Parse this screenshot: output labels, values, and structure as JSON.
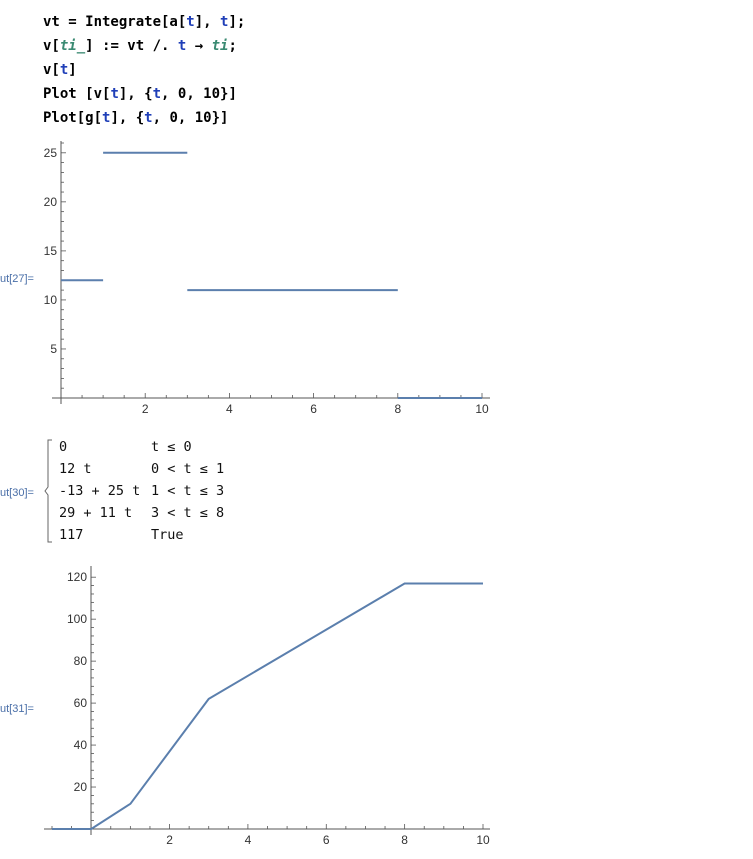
{
  "input_lines": [
    [
      {
        "t": "vt = Integrate[a["
      },
      {
        "t": "t",
        "c": "blue"
      },
      {
        "t": "], "
      },
      {
        "t": "t",
        "c": "blue"
      },
      {
        "t": "];"
      }
    ],
    [
      {
        "t": "v["
      },
      {
        "t": "ti_",
        "c": "green"
      },
      {
        "t": "] := vt /. "
      },
      {
        "t": "t",
        "c": "blue"
      },
      {
        "t": " → "
      },
      {
        "t": "ti",
        "c": "green"
      },
      {
        "t": ";"
      }
    ],
    [
      {
        "t": "v["
      },
      {
        "t": "t",
        "c": "blue"
      },
      {
        "t": "]"
      }
    ],
    [
      {
        "t": "Plot [v["
      },
      {
        "t": "t",
        "c": "blue"
      },
      {
        "t": "], {"
      },
      {
        "t": "t",
        "c": "blue"
      },
      {
        "t": ", 0, 10}]"
      }
    ],
    [
      {
        "t": "Plot[g["
      },
      {
        "t": "t",
        "c": "blue"
      },
      {
        "t": "], {"
      },
      {
        "t": "t",
        "c": "blue"
      },
      {
        "t": ", 0, 10}]"
      }
    ]
  ],
  "output_labels": {
    "out27": "ut[27]=",
    "out30": "ut[30]=",
    "out31": "ut[31]="
  },
  "piecewise": {
    "rows": [
      {
        "expr": "0",
        "cond": "t ≤ 0"
      },
      {
        "expr": "12 t",
        "cond": "0 < t ≤ 1"
      },
      {
        "expr": "-13 + 25 t",
        "cond": "1 < t ≤ 3"
      },
      {
        "expr": "29 + 11 t",
        "cond": "3 < t ≤ 8"
      },
      {
        "expr": "117",
        "cond": "True"
      }
    ]
  },
  "colors": {
    "line": "#5b7fad",
    "axis": "#555555"
  },
  "chart_data": [
    {
      "type": "line",
      "xlim": [
        0,
        10
      ],
      "ylim": [
        0,
        26
      ],
      "xticks": [
        2,
        4,
        6,
        8,
        10
      ],
      "yticks": [
        5,
        10,
        15,
        20,
        25
      ],
      "segments": [
        [
          [
            0,
            12
          ],
          [
            1,
            12
          ]
        ],
        [
          [
            1,
            25
          ],
          [
            3,
            25
          ]
        ],
        [
          [
            3,
            11
          ],
          [
            8,
            11
          ]
        ],
        [
          [
            8,
            0
          ],
          [
            10,
            0
          ]
        ]
      ]
    },
    {
      "type": "line",
      "xlim": [
        -1,
        10
      ],
      "ylim": [
        0,
        122
      ],
      "xticks": [
        2,
        4,
        6,
        8,
        10
      ],
      "yticks": [
        20,
        40,
        60,
        80,
        100,
        120
      ],
      "series": [
        {
          "points": [
            [
              -1,
              0
            ],
            [
              0,
              0
            ],
            [
              1,
              12
            ],
            [
              3,
              62
            ],
            [
              8,
              117
            ],
            [
              10,
              117
            ]
          ]
        }
      ]
    }
  ]
}
